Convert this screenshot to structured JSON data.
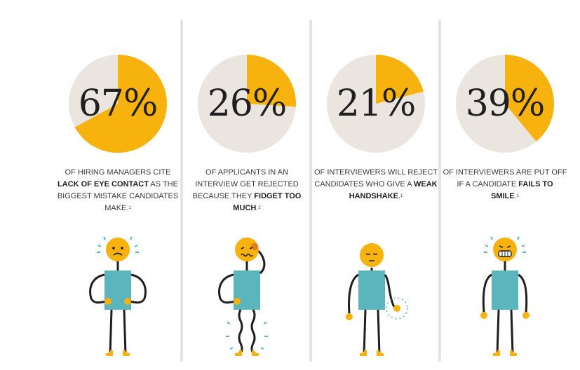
{
  "colors": {
    "accent": "#f7b20d",
    "pie_bg": "#ebe5e0",
    "teal": "#5bb5bd",
    "ink": "#1f1f1f",
    "divider": "#e9e4df"
  },
  "chart_data": [
    {
      "type": "pie",
      "value": 67,
      "label": "67%",
      "caption_parts": [
        {
          "text": "Of hiring managers cite ",
          "bold": false
        },
        {
          "text": "lack of eye contact",
          "bold": true
        },
        {
          "text": " as the biggest mistake candidates make.",
          "bold": false
        }
      ],
      "footnote": "1",
      "figure": "worried-person-icon"
    },
    {
      "type": "pie",
      "value": 26,
      "label": "26%",
      "caption_parts": [
        {
          "text": "Of applicants in an interview get rejected because they ",
          "bold": false
        },
        {
          "text": "fidget too much",
          "bold": true
        },
        {
          "text": ".",
          "bold": false
        }
      ],
      "footnote": "2",
      "figure": "fidgeting-person-icon"
    },
    {
      "type": "pie",
      "value": 21,
      "label": "21%",
      "caption_parts": [
        {
          "text": "Of interviewers will reject candidates who give a ",
          "bold": false
        },
        {
          "text": "weak handshake",
          "bold": true
        },
        {
          "text": ".",
          "bold": false
        }
      ],
      "footnote": "1",
      "figure": "weak-handshake-person-icon"
    },
    {
      "type": "pie",
      "value": 39,
      "label": "39%",
      "caption_parts": [
        {
          "text": "Of interviewers are put off if a candidate ",
          "bold": false
        },
        {
          "text": "fails to smile",
          "bold": true
        },
        {
          "text": ".",
          "bold": false
        }
      ],
      "footnote": "1",
      "figure": "grimacing-person-icon"
    }
  ]
}
